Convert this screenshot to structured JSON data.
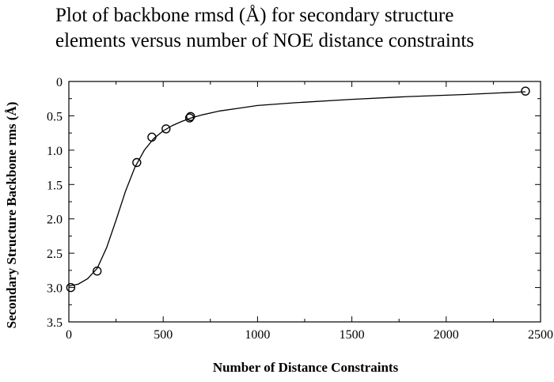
{
  "chart_data": {
    "type": "scatter",
    "title_line1": "Plot of backbone rmsd (Å) for secondary structure",
    "title_line2": "elements versus number of NOE distance constraints",
    "xlabel": "Number of Distance Constraints",
    "ylabel": "Secondary Structure Backbone rms (Å)",
    "xlim": [
      0,
      2500
    ],
    "ylim": [
      3.5,
      0
    ],
    "y_inverted": true,
    "grid": false,
    "x_ticks": [
      "0",
      "500",
      "1000",
      "1500",
      "2000",
      "2500"
    ],
    "x_tick_values": [
      0,
      500,
      1000,
      1500,
      2000,
      2500
    ],
    "y_ticks": [
      "0",
      "0.5",
      "1.0",
      "1.5",
      "2.0",
      "2.5",
      "3.0",
      "3.5"
    ],
    "y_tick_values": [
      0,
      0.5,
      1.0,
      1.5,
      2.0,
      2.5,
      3.0,
      3.5
    ],
    "series": [
      {
        "points": [
          {
            "x": 10,
            "y": 3.0
          },
          {
            "x": 150,
            "y": 2.76
          },
          {
            "x": 360,
            "y": 1.18
          },
          {
            "x": 440,
            "y": 0.81
          },
          {
            "x": 515,
            "y": 0.69
          },
          {
            "x": 640,
            "y": 0.53
          },
          {
            "x": 645,
            "y": 0.51
          },
          {
            "x": 2420,
            "y": 0.14
          }
        ]
      }
    ],
    "fit_curve": [
      [
        0,
        2.98
      ],
      [
        50,
        2.95
      ],
      [
        100,
        2.87
      ],
      [
        150,
        2.72
      ],
      [
        200,
        2.42
      ],
      [
        250,
        2.02
      ],
      [
        300,
        1.6
      ],
      [
        350,
        1.25
      ],
      [
        400,
        1.0
      ],
      [
        450,
        0.83
      ],
      [
        500,
        0.72
      ],
      [
        550,
        0.64
      ],
      [
        600,
        0.58
      ],
      [
        650,
        0.53
      ],
      [
        700,
        0.49
      ],
      [
        800,
        0.43
      ],
      [
        900,
        0.39
      ],
      [
        1000,
        0.35
      ],
      [
        1200,
        0.31
      ],
      [
        1500,
        0.26
      ],
      [
        1800,
        0.22
      ],
      [
        2100,
        0.19
      ],
      [
        2420,
        0.15
      ]
    ],
    "colors": {
      "marker": "#000000",
      "line": "#000000",
      "background": "#ffffff"
    }
  }
}
